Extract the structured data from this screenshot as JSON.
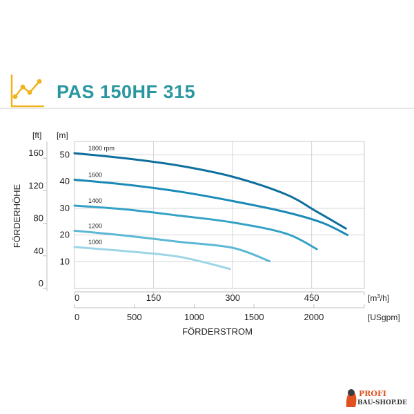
{
  "title": "PAS 150HF 315",
  "colors": {
    "accent": "#2a97a0",
    "icon": "#f2b21b",
    "series": [
      "#0e6f9e",
      "#1a8ab7",
      "#34a2c6",
      "#5cb8d4",
      "#9dd5e6"
    ]
  },
  "chart_data": {
    "type": "line",
    "title": "PAS 150HF 315",
    "xlabel": "FÖRDERSTROM",
    "ylabel": "FÖRDERHÖHE",
    "x_unit_primary": "[m³/h]",
    "x_unit_secondary": "[USgpm]",
    "y_unit_left": "[ft]",
    "y_unit_right": "[m]",
    "xlim": [
      0,
      550
    ],
    "ylim": [
      0,
      55
    ],
    "x_ticks_primary": [
      "0",
      "150",
      "300",
      "450"
    ],
    "x_tick_values_primary": [
      0,
      150,
      300,
      450
    ],
    "x_ticks_secondary": [
      "0",
      "500",
      "1000",
      "1500",
      "2000"
    ],
    "x_tick_values_secondary": [
      0,
      500,
      1000,
      1500,
      2000
    ],
    "y_ticks_m": [
      "10",
      "20",
      "30",
      "40",
      "50"
    ],
    "y_tick_values_m": [
      10,
      20,
      30,
      40,
      50
    ],
    "y_ticks_ft": [
      "0",
      "40",
      "80",
      "120",
      "160"
    ],
    "y_tick_values_ft": [
      0,
      40,
      80,
      120,
      160
    ],
    "grid": true,
    "series": [
      {
        "name": "1800 rpm",
        "points": [
          [
            0,
            50.6
          ],
          [
            100,
            48.6
          ],
          [
            200,
            45.9
          ],
          [
            300,
            41.8
          ],
          [
            400,
            35.3
          ],
          [
            460,
            28.7
          ],
          [
            515,
            22.4
          ]
        ]
      },
      {
        "name": "1600",
        "points": [
          [
            0,
            40.7
          ],
          [
            100,
            38.8
          ],
          [
            200,
            36.2
          ],
          [
            300,
            32.7
          ],
          [
            400,
            28.6
          ],
          [
            470,
            24.6
          ],
          [
            518,
            20.0
          ]
        ]
      },
      {
        "name": "1400",
        "points": [
          [
            0,
            31.0
          ],
          [
            100,
            29.5
          ],
          [
            200,
            27.2
          ],
          [
            300,
            24.7
          ],
          [
            400,
            20.6
          ],
          [
            460,
            14.7
          ]
        ]
      },
      {
        "name": "1200",
        "points": [
          [
            0,
            21.6
          ],
          [
            100,
            19.7
          ],
          [
            200,
            17.4
          ],
          [
            300,
            15.2
          ],
          [
            370,
            10.2
          ]
        ]
      },
      {
        "name": "1000",
        "points": [
          [
            0,
            15.5
          ],
          [
            100,
            13.9
          ],
          [
            200,
            11.8
          ],
          [
            295,
            7.3
          ]
        ]
      }
    ]
  },
  "watermark": {
    "line1": "PROFI",
    "line2": "BAU-SHOP.DE"
  }
}
